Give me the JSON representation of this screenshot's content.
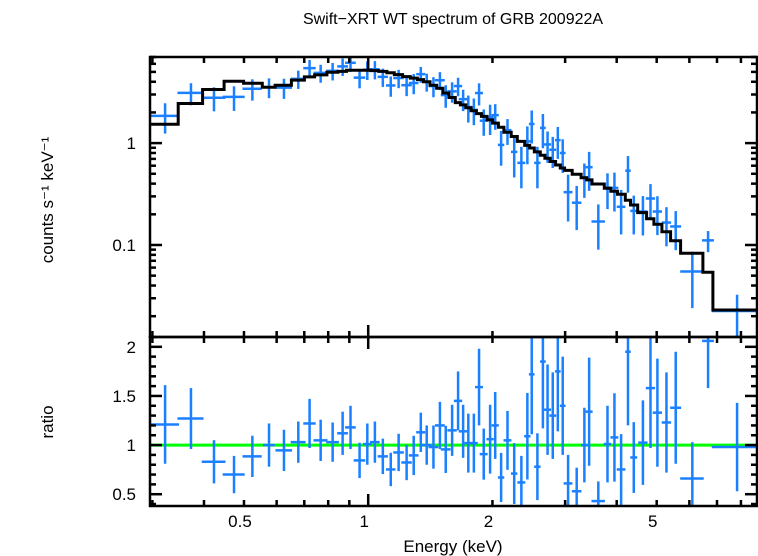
{
  "chart_data": [
    {
      "type": "scatter",
      "panel": "spectrum",
      "title": "Swift−XRT WT spectrum of GRB 200922A",
      "ylabel": "counts s⁻¹ keV⁻¹",
      "xlabel": "",
      "xscale": "log",
      "yscale": "log",
      "xlim": [
        0.296,
        8.75
      ],
      "ylim": [
        0.0125,
        7.0
      ],
      "yticks": [
        {
          "value": 1,
          "label": "1"
        },
        {
          "value": 0.1,
          "label": "0.1"
        }
      ],
      "colors": {
        "data": "#1a80ff",
        "model": "#000000"
      },
      "points": {
        "energy": [
          0.322,
          0.372,
          0.423,
          0.473,
          0.524,
          0.575,
          0.625,
          0.677,
          0.721,
          0.767,
          0.82,
          0.867,
          0.906,
          0.953,
          0.995,
          1.038,
          1.085,
          1.134,
          1.185,
          1.239,
          1.289,
          1.341,
          1.386,
          1.439,
          1.492,
          1.541,
          1.597,
          1.651,
          1.698,
          1.748,
          1.803,
          1.856,
          1.905,
          1.974,
          2.031,
          2.099,
          2.175,
          2.258,
          2.35,
          2.43,
          2.49,
          2.57,
          2.65,
          2.72,
          2.8,
          2.88,
          2.96,
          3.05,
          3.2,
          3.34,
          3.43,
          3.61,
          3.8,
          3.95,
          4.1,
          4.26,
          4.4,
          4.63,
          4.83,
          5.02,
          5.28,
          5.56,
          6.1,
          6.66,
          7.83
        ],
        "energy_err": [
          0.026,
          0.027,
          0.028,
          0.029,
          0.028,
          0.019,
          0.029,
          0.028,
          0.025,
          0.03,
          0.029,
          0.026,
          0.027,
          0.031,
          0.024,
          0.028,
          0.031,
          0.03,
          0.035,
          0.036,
          0.035,
          0.034,
          0.038,
          0.039,
          0.041,
          0.042,
          0.042,
          0.038,
          0.041,
          0.039,
          0.04,
          0.041,
          0.042,
          0.04,
          0.041,
          0.037,
          0.048,
          0.04,
          0.052,
          0.043,
          0.039,
          0.046,
          0.042,
          0.053,
          0.054,
          0.046,
          0.047,
          0.075,
          0.085,
          0.065,
          0.067,
          0.135,
          0.079,
          0.087,
          0.099,
          0.065,
          0.085,
          0.12,
          0.125,
          0.13,
          0.138,
          0.17,
          0.4,
          0.22,
          1.03
        ],
        "counts": [
          1.85,
          3.11,
          2.79,
          2.84,
          3.42,
          3.54,
          3.5,
          4.27,
          5.44,
          4.89,
          5.12,
          5.66,
          6.14,
          4.39,
          5.25,
          5.3,
          4.47,
          3.68,
          4.35,
          3.7,
          3.89,
          4.75,
          4.0,
          3.63,
          4.14,
          2.96,
          3.22,
          3.63,
          2.7,
          2.26,
          2.12,
          3.1,
          1.66,
          1.79,
          1.88,
          0.96,
          1.34,
          0.82,
          0.64,
          1.04,
          1.54,
          0.64,
          1.41,
          0.97,
          0.86,
          1.07,
          0.8,
          0.33,
          0.26,
          0.46,
          0.58,
          0.17,
          0.365,
          0.363,
          0.237,
          0.536,
          0.216,
          0.213,
          0.286,
          0.213,
          0.166,
          0.152,
          0.055,
          0.111,
          0.0225
        ],
        "counts_err": [
          0.61,
          0.76,
          0.74,
          0.77,
          0.81,
          0.78,
          0.78,
          0.87,
          1.1,
          0.98,
          1.0,
          1.1,
          1.14,
          0.94,
          1.09,
          1.08,
          0.91,
          0.83,
          0.89,
          0.81,
          0.87,
          0.84,
          0.8,
          0.81,
          0.83,
          0.74,
          0.73,
          0.75,
          0.64,
          0.67,
          0.62,
          0.76,
          0.48,
          0.59,
          0.53,
          0.36,
          0.38,
          0.36,
          0.28,
          0.42,
          0.55,
          0.28,
          0.52,
          0.33,
          0.29,
          0.37,
          0.29,
          0.16,
          0.12,
          0.17,
          0.24,
          0.08,
          0.14,
          0.15,
          0.11,
          0.21,
          0.089,
          0.089,
          0.11,
          0.088,
          0.069,
          0.063,
          0.031,
          0.026,
          0.01
        ]
      },
      "model": [
        1.53,
        2.45,
        3.36,
        4.05,
        3.87,
        3.54,
        3.7,
        4.15,
        4.46,
        4.67,
        4.97,
        5.05,
        5.2,
        5.2,
        5.2,
        5.15,
        5.05,
        4.9,
        4.7,
        4.5,
        4.35,
        4.2,
        4.0,
        3.7,
        3.45,
        3.1,
        2.8,
        2.5,
        2.37,
        2.22,
        2.08,
        1.95,
        1.83,
        1.69,
        1.57,
        1.43,
        1.28,
        1.16,
        1.04,
        0.95,
        0.895,
        0.82,
        0.76,
        0.71,
        0.66,
        0.61,
        0.57,
        0.54,
        0.495,
        0.458,
        0.435,
        0.397,
        0.361,
        0.337,
        0.315,
        0.275,
        0.247,
        0.208,
        0.181,
        0.16,
        0.135,
        0.11,
        0.083,
        0.054,
        0.023
      ]
    },
    {
      "type": "scatter",
      "panel": "ratio",
      "ylabel": "ratio",
      "xlabel": "Energy (keV)",
      "xscale": "log",
      "xlim": [
        0.296,
        8.75
      ],
      "ylim": [
        0.38,
        2.1
      ],
      "xticks": [
        {
          "value": 0.5,
          "label": "0.5"
        },
        {
          "value": 1,
          "label": "1"
        },
        {
          "value": 2,
          "label": "2"
        },
        {
          "value": 5,
          "label": "5"
        }
      ],
      "yticks": [
        {
          "value": 0.5,
          "label": "0.5"
        },
        {
          "value": 1,
          "label": "1"
        },
        {
          "value": 1.5,
          "label": "1.5"
        },
        {
          "value": 2,
          "label": "2"
        }
      ],
      "reference_line": 1,
      "colors": {
        "data": "#1a80ff",
        "reference": "#00ff00"
      },
      "ratio": [
        1.21,
        1.27,
        0.83,
        0.7,
        0.885,
        1.0,
        0.946,
        1.03,
        1.22,
        1.048,
        1.03,
        1.12,
        1.18,
        0.844,
        1.01,
        1.03,
        0.885,
        0.752,
        0.925,
        0.823,
        0.895,
        1.13,
        1.0,
        0.98,
        1.2,
        0.956,
        1.15,
        1.45,
        1.14,
        1.02,
        1.02,
        1.59,
        0.908,
        1.06,
        1.2,
        0.67,
        1.048,
        0.71,
        0.62,
        1.09,
        1.72,
        0.78,
        1.85,
        1.36,
        1.3,
        1.75,
        1.4,
        0.61,
        0.53,
        1.0,
        1.34,
        0.43,
        1.01,
        1.078,
        0.752,
        1.95,
        0.874,
        1.025,
        1.58,
        1.33,
        1.23,
        1.38,
        0.66,
        2.06,
        0.98
      ],
      "ratio_err": [
        0.4,
        0.31,
        0.22,
        0.19,
        0.21,
        0.22,
        0.21,
        0.21,
        0.25,
        0.21,
        0.2,
        0.22,
        0.22,
        0.18,
        0.21,
        0.21,
        0.18,
        0.17,
        0.19,
        0.18,
        0.2,
        0.2,
        0.2,
        0.22,
        0.24,
        0.24,
        0.26,
        0.3,
        0.27,
        0.3,
        0.3,
        0.39,
        0.26,
        0.35,
        0.34,
        0.25,
        0.3,
        0.31,
        0.27,
        0.44,
        0.61,
        0.34,
        0.68,
        0.46,
        0.44,
        0.61,
        0.5,
        0.29,
        0.24,
        0.38,
        0.55,
        0.2,
        0.39,
        0.45,
        0.36,
        0.75,
        0.36,
        0.43,
        0.61,
        0.55,
        0.51,
        0.57,
        0.37,
        0.48,
        0.45
      ]
    }
  ]
}
